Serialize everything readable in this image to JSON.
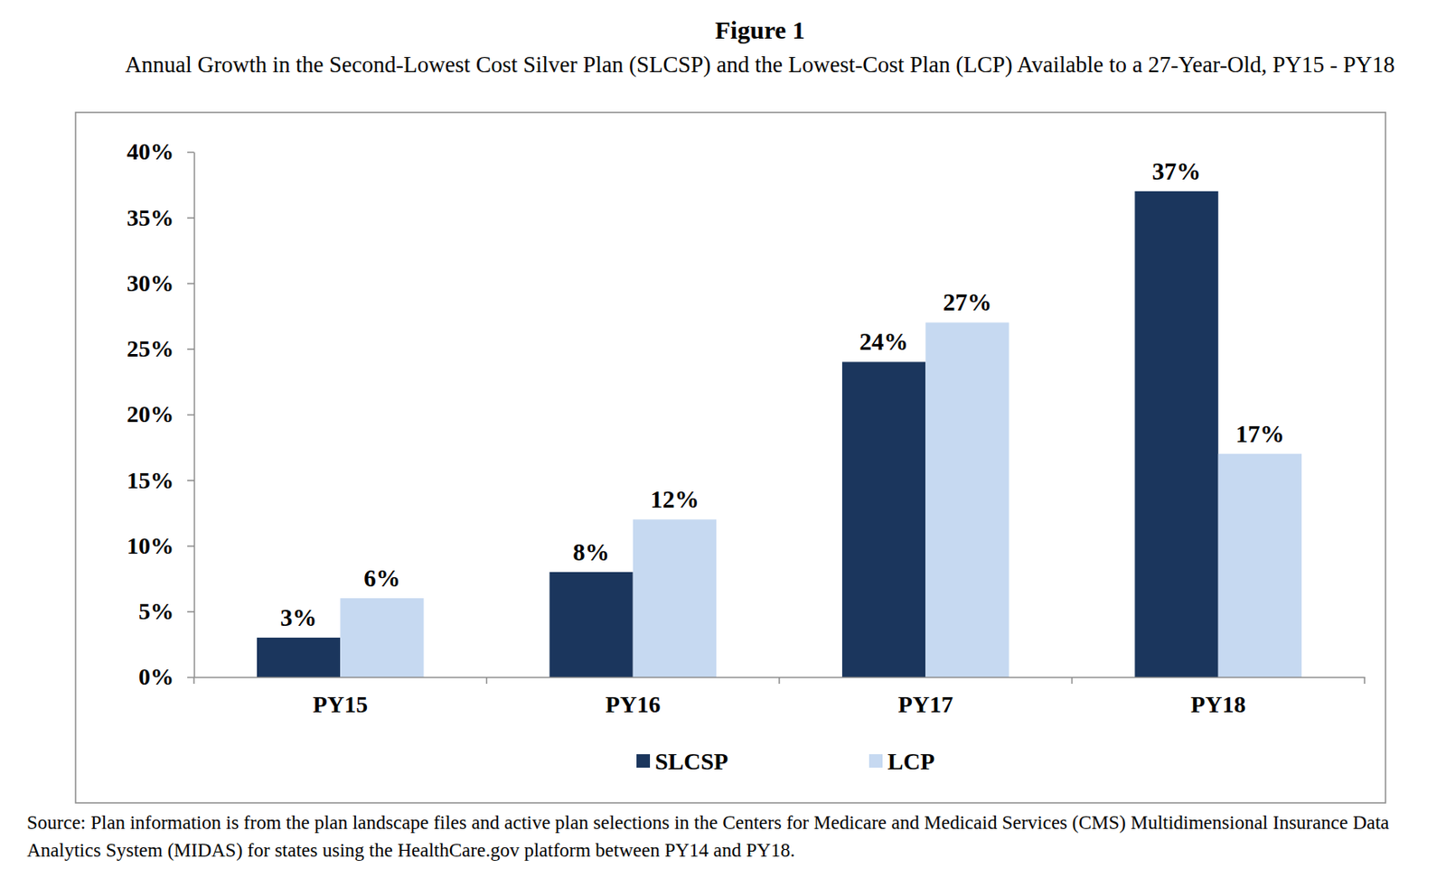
{
  "chart_data": {
    "type": "bar",
    "title": "Figure 1",
    "subtitle": "Annual Growth in the Second-Lowest Cost Silver Plan (SLCSP) and the Lowest-Cost Plan (LCP) Available to a 27-Year-Old, PY15 - PY18",
    "source": "Source: Plan information is from the plan landscape files and active plan selections in the Centers for Medicare and Medicaid Services (CMS) Multidimensional Insurance Data Analytics System (MIDAS) for states using the HealthCare.gov platform between PY14 and PY18.",
    "categories": [
      "PY15",
      "PY16",
      "PY17",
      "PY18"
    ],
    "series": [
      {
        "name": "SLCSP",
        "color": "#1b365d",
        "values": [
          3,
          8,
          24,
          37
        ],
        "value_labels": [
          "3%",
          "8%",
          "24%",
          "37%"
        ]
      },
      {
        "name": "LCP",
        "color": "#c6d9f1",
        "values": [
          6,
          12,
          27,
          17
        ],
        "value_labels": [
          "6%",
          "12%",
          "27%",
          "17%"
        ]
      }
    ],
    "ylim": [
      0,
      40
    ],
    "yticks": [
      {
        "value": 0,
        "label": "0%"
      },
      {
        "value": 5,
        "label": "5%"
      },
      {
        "value": 10,
        "label": "10%"
      },
      {
        "value": 15,
        "label": "15%"
      },
      {
        "value": 20,
        "label": "20%"
      },
      {
        "value": 25,
        "label": "25%"
      },
      {
        "value": 30,
        "label": "30%"
      },
      {
        "value": 35,
        "label": "35%"
      },
      {
        "value": 40,
        "label": "40%"
      }
    ],
    "grid": false,
    "legend": "bottom",
    "data_labels": true
  }
}
